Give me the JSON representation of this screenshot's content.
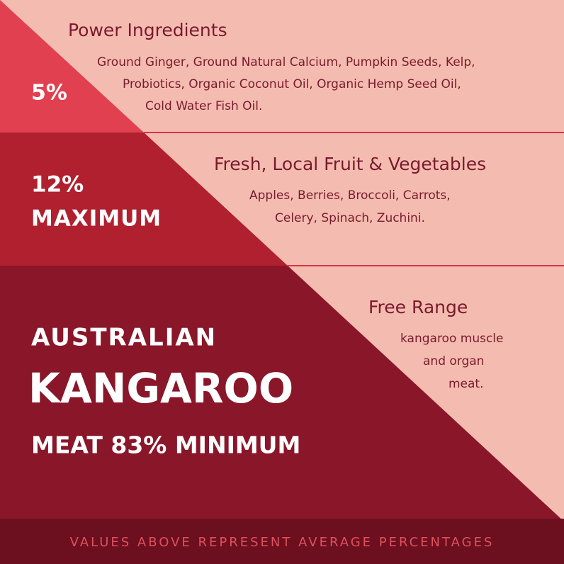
{
  "sections": [
    {
      "labels": [
        "5%"
      ],
      "heading": "Power Ingredients",
      "lines": [
        "Ground Ginger, Ground Natural Calcium, Pumpkin Seeds, Kelp,",
        "Probiotics, Organic Coconut Oil, Organic Hemp Seed Oil,",
        "Cold Water Fish Oil."
      ]
    },
    {
      "labels": [
        "12%",
        "MAXIMUM"
      ],
      "heading": "Fresh, Local Fruit & Vegetables",
      "lines": [
        "Apples, Berries, Broccoli, Carrots,",
        "Celery, Spinach, Zuchini."
      ]
    },
    {
      "labels": [
        "AUSTRALIAN",
        "KANGAROO",
        "MEAT 83% MINIMUM"
      ],
      "heading": "Free Range",
      "lines": [
        "kangaroo muscle",
        "and organ",
        "meat."
      ]
    }
  ],
  "footer": "VALUES ABOVE REPRESENT AVERAGE PERCENTAGES"
}
